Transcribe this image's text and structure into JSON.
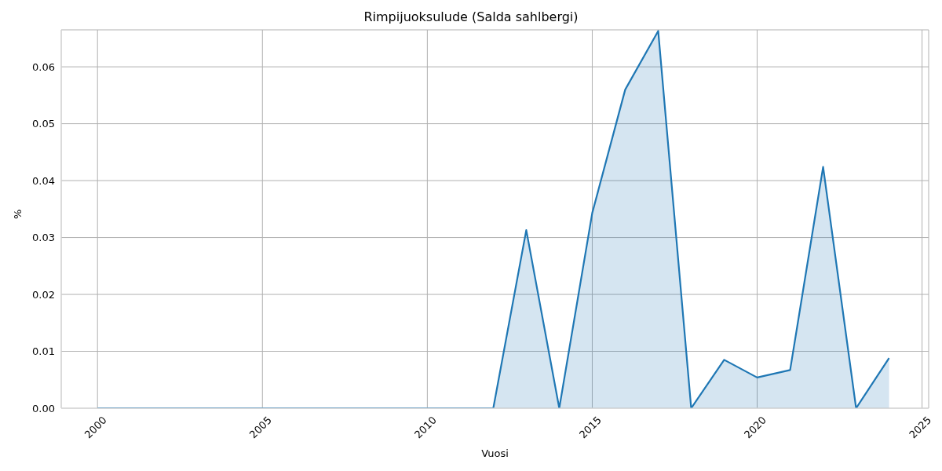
{
  "chart_data": {
    "type": "area",
    "title": "Rimpijuoksulude (Salda sahlbergi)",
    "xlabel": "Vuosi",
    "ylabel": "%",
    "x": [
      2000,
      2001,
      2002,
      2003,
      2004,
      2005,
      2006,
      2007,
      2008,
      2009,
      2010,
      2011,
      2012,
      2013,
      2014,
      2015,
      2016,
      2017,
      2018,
      2019,
      2020,
      2021,
      2022,
      2023,
      2024
    ],
    "series": [
      {
        "color": "#1f77b4",
        "values": [
          0,
          0,
          0,
          0,
          0,
          0,
          0,
          0,
          0,
          0,
          0,
          0,
          0,
          0.0313,
          0,
          0.0343,
          0.056,
          0.0663,
          0,
          0.0085,
          0.0054,
          0.0067,
          0.0424,
          0,
          0.0088
        ]
      }
    ],
    "xlim": [
      1998.9,
      2025.2
    ],
    "xticks": [
      2000,
      2005,
      2010,
      2015,
      2020,
      2025
    ],
    "ylim": [
      0,
      0.0665
    ],
    "yticks": [
      {
        "value": 0,
        "label": "0.00"
      },
      0.01,
      0.02,
      0.03,
      0.04,
      0.05,
      0.06
    ],
    "grid": true,
    "legend": false
  }
}
